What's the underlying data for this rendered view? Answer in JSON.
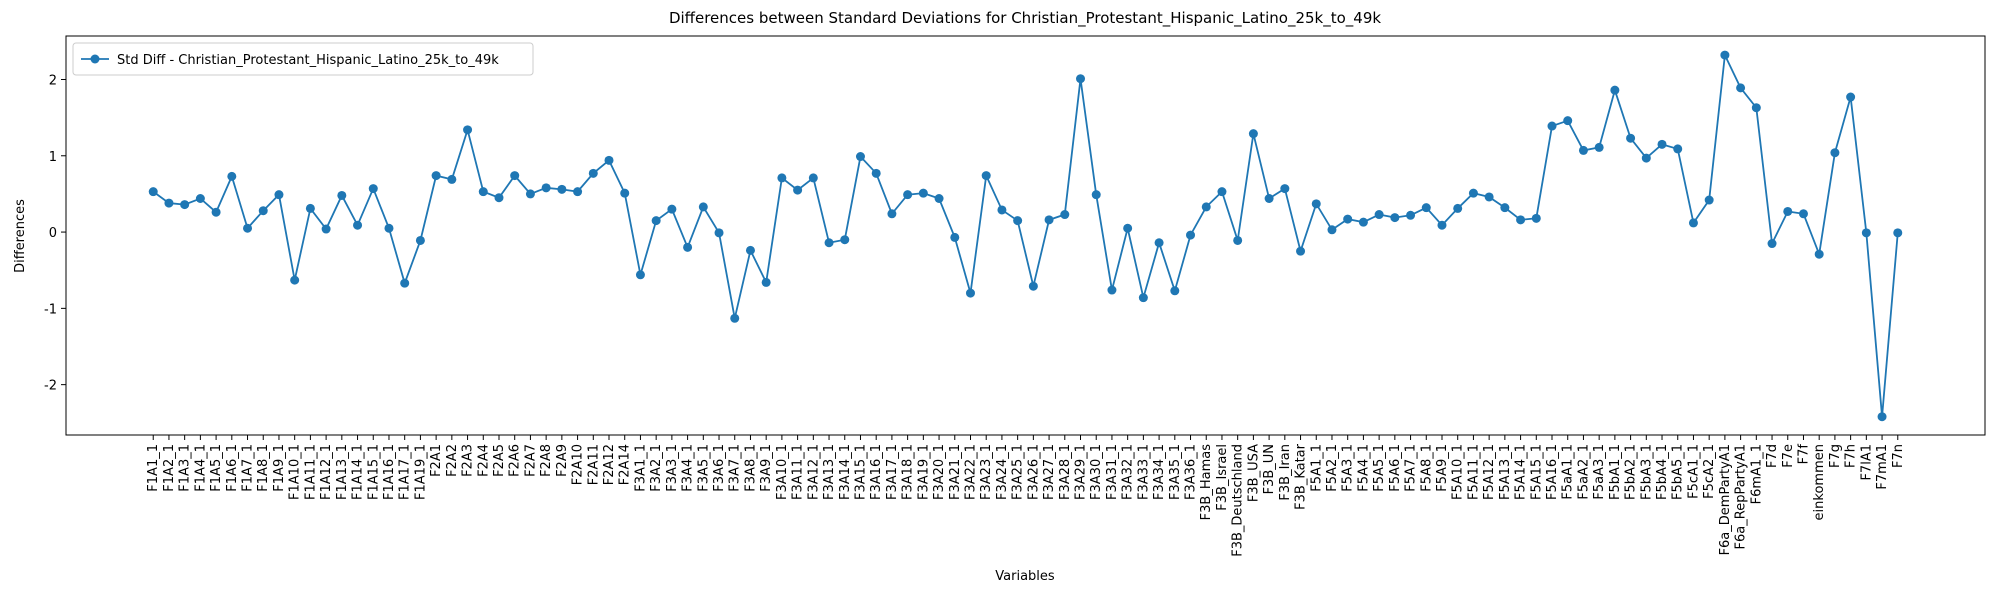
{
  "chart_data": {
    "type": "line",
    "title": "Differences between Standard Deviations for Christian_Protestant_Hispanic_Latino_25k_to_49k",
    "x_label": "Variables",
    "y_label": "Differences",
    "categories": [
      "F1A1_1",
      "F1A2_1",
      "F1A3_1",
      "F1A4_1",
      "F1A5_1",
      "F1A6_1",
      "F1A7_1",
      "F1A8_1",
      "F1A9_1",
      "F1A10_1",
      "F1A11_1",
      "F1A12_1",
      "F1A13_1",
      "F1A14_1",
      "F1A15_1",
      "F1A16_1",
      "F1A17_1",
      "F1A19_1",
      "F2A1",
      "F2A2",
      "F2A3",
      "F2A4",
      "F2A5",
      "F2A6",
      "F2A7",
      "F2A8",
      "F2A9",
      "F2A10",
      "F2A11",
      "F2A12",
      "F2A14",
      "F3A1_1",
      "F3A2_1",
      "F3A3_1",
      "F3A4_1",
      "F3A5_1",
      "F3A6_1",
      "F3A7_1",
      "F3A8_1",
      "F3A9_1",
      "F3A10_1",
      "F3A11_1",
      "F3A12_1",
      "F3A13_1",
      "F3A14_1",
      "F3A15_1",
      "F3A16_1",
      "F3A17_1",
      "F3A18_1",
      "F3A19_1",
      "F3A20_1",
      "F3A21_1",
      "F3A22_1",
      "F3A23_1",
      "F3A24_1",
      "F3A25_1",
      "F3A26_1",
      "F3A27_1",
      "F3A28_1",
      "F3A29_1",
      "F3A30_1",
      "F3A31_1",
      "F3A32_1",
      "F3A33_1",
      "F3A34_1",
      "F3A35_1",
      "F3A36_1",
      "F3B_Hamas",
      "F3B_Israel",
      "F3B_Deutschland",
      "F3B_USA",
      "F3B_UN",
      "F3B_Iran",
      "F3B_Katar",
      "F5A1_1",
      "F5A2_1",
      "F5A3_1",
      "F5A4_1",
      "F5A5_1",
      "F5A6_1",
      "F5A7_1",
      "F5A8_1",
      "F5A9_1",
      "F5A10_1",
      "F5A11_1",
      "F5A12_1",
      "F5A13_1",
      "F5A14_1",
      "F5A15_1",
      "F5A16_1",
      "F5aA1_1",
      "F5aA2_1",
      "F5aA3_1",
      "F5bA1_1",
      "F5bA2_1",
      "F5bA3_1",
      "F5bA4_1",
      "F5bA5_1",
      "F5cA1_1",
      "F5cA2_1",
      "F6a_DemPartyA1",
      "F6a_RepPartyA1",
      "F6mA1_1",
      "F7d",
      "F7e",
      "F7f",
      "einkommen",
      "F7g",
      "F7h",
      "F7lA1",
      "F7mA1",
      "F7n"
    ],
    "series": [
      {
        "name": "Std Diff - Christian_Protestant_Hispanic_Latino_25k_to_49k",
        "color": "#1f77b4",
        "values": [
          0.53,
          0.38,
          0.36,
          0.44,
          0.26,
          0.73,
          0.05,
          0.28,
          0.49,
          -0.63,
          0.31,
          0.04,
          0.48,
          0.09,
          0.57,
          0.05,
          -0.67,
          -0.11,
          0.74,
          0.69,
          1.34,
          0.53,
          0.45,
          0.74,
          0.5,
          0.58,
          0.56,
          0.53,
          0.77,
          0.94,
          0.51,
          -0.56,
          0.15,
          0.3,
          -0.2,
          0.33,
          -0.01,
          -1.13,
          -0.24,
          -0.66,
          0.71,
          0.55,
          0.71,
          -0.14,
          -0.1,
          0.99,
          0.77,
          0.24,
          0.49,
          0.51,
          0.44,
          -0.07,
          -0.8,
          0.74,
          0.29,
          0.15,
          -0.71,
          0.16,
          0.23,
          2.01,
          0.49,
          -0.76,
          0.05,
          -0.86,
          -0.14,
          -0.77,
          -0.04,
          0.33,
          0.53,
          -0.11,
          1.29,
          0.44,
          0.57,
          -0.25,
          0.37,
          0.03,
          0.17,
          0.13,
          0.23,
          0.19,
          0.22,
          0.32,
          0.09,
          0.31,
          0.51,
          0.46,
          0.32,
          0.16,
          0.18,
          1.39,
          1.46,
          1.07,
          1.11,
          1.86,
          1.23,
          0.97,
          1.15,
          1.09,
          0.12,
          0.42,
          2.32,
          1.89,
          1.63,
          -0.15,
          0.27,
          0.24,
          -0.29,
          1.04,
          1.77,
          -0.01,
          -2.42,
          -0.01
        ]
      }
    ],
    "ylim": [
      -2.66,
      2.57
    ],
    "yticks": [
      -2,
      -1,
      0,
      1,
      2
    ],
    "grid": false,
    "legend": "upper left"
  }
}
